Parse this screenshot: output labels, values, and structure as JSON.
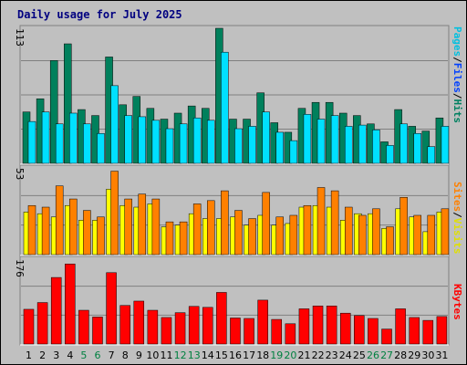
{
  "title": "Daily usage for July 2025",
  "colors": {
    "background": "#c0c0c0",
    "plot_bg": "#c0c0c0",
    "grid": "#808080",
    "title": "#000080",
    "hits": "#00805c",
    "files": "#0040ff",
    "pages": "#00e0ff",
    "visits": "#ffff00",
    "sites": "#ff8000",
    "kbytes": "#ff0000",
    "weekend": "#008040",
    "weekday": "#000000"
  },
  "side_labels": {
    "top": [
      {
        "text": "Pages",
        "color": "#00c0e0"
      },
      {
        "text": "/",
        "color": "#000000"
      },
      {
        "text": "Files",
        "color": "#0040ff"
      },
      {
        "text": "/",
        "color": "#000000"
      },
      {
        "text": "Hits",
        "color": "#008060"
      }
    ],
    "mid": [
      {
        "text": "Sites",
        "color": "#ff8000"
      },
      {
        "text": "/",
        "color": "#000000"
      },
      {
        "text": "Visits",
        "color": "#e0e000"
      }
    ],
    "bottom": [
      {
        "text": "KBytes",
        "color": "#ff0000"
      }
    ]
  },
  "chart_data": [
    {
      "type": "bar",
      "panel": "hits_files_pages",
      "ymax_label": "113",
      "ylim": [
        0,
        113
      ],
      "categories": [
        "1",
        "2",
        "3",
        "4",
        "5",
        "6",
        "7",
        "8",
        "9",
        "10",
        "11",
        "12",
        "13",
        "14",
        "15",
        "16",
        "17",
        "18",
        "19",
        "20",
        "21",
        "22",
        "23",
        "24",
        "25",
        "26",
        "27",
        "28",
        "29",
        "30",
        "31"
      ],
      "series": [
        {
          "name": "Hits",
          "values": [
            43,
            54,
            86,
            100,
            45,
            40,
            89,
            49,
            56,
            46,
            37,
            42,
            48,
            46,
            113,
            37,
            37,
            59,
            34,
            26,
            46,
            51,
            51,
            42,
            40,
            33,
            18,
            45,
            31,
            27,
            38
          ]
        },
        {
          "name": "Files",
          "values": [
            0,
            0,
            0,
            0,
            0,
            0,
            0,
            0,
            0,
            0,
            0,
            0,
            0,
            0,
            0,
            0,
            0,
            0,
            0,
            0,
            0,
            0,
            0,
            0,
            0,
            0,
            0,
            0,
            0,
            0,
            0
          ]
        },
        {
          "name": "Pages",
          "values": [
            35,
            43,
            33,
            42,
            33,
            25,
            65,
            40,
            39,
            36,
            29,
            33,
            38,
            36,
            93,
            29,
            31,
            43,
            26,
            19,
            41,
            37,
            40,
            31,
            32,
            28,
            15,
            33,
            25,
            14,
            31
          ]
        }
      ]
    },
    {
      "type": "bar",
      "panel": "visits_sites",
      "ymax_label": "53",
      "ylim": [
        0,
        53
      ],
      "categories": [
        "1",
        "2",
        "3",
        "4",
        "5",
        "6",
        "7",
        "8",
        "9",
        "10",
        "11",
        "12",
        "13",
        "14",
        "15",
        "16",
        "17",
        "18",
        "19",
        "20",
        "21",
        "22",
        "23",
        "24",
        "25",
        "26",
        "27",
        "28",
        "29",
        "30",
        "31"
      ],
      "series": [
        {
          "name": "Visits",
          "values": [
            26,
            25,
            23,
            30,
            21,
            21,
            40,
            30,
            29,
            31,
            17,
            18,
            25,
            22,
            22,
            23,
            18,
            24,
            18,
            19,
            29,
            30,
            29,
            21,
            25,
            25,
            16,
            28,
            23,
            14,
            26
          ]
        },
        {
          "name": "Sites",
          "values": [
            30,
            29,
            42,
            34,
            27,
            23,
            51,
            34,
            37,
            34,
            20,
            20,
            31,
            33,
            39,
            27,
            22,
            38,
            23,
            24,
            30,
            41,
            39,
            29,
            24,
            28,
            17,
            35,
            24,
            24,
            28
          ]
        }
      ]
    },
    {
      "type": "bar",
      "panel": "kbytes",
      "ymax_label": "176",
      "ylim": [
        0,
        176
      ],
      "categories": [
        "1",
        "2",
        "3",
        "4",
        "5",
        "6",
        "7",
        "8",
        "9",
        "10",
        "11",
        "12",
        "13",
        "14",
        "15",
        "16",
        "17",
        "18",
        "19",
        "20",
        "21",
        "22",
        "23",
        "24",
        "25",
        "26",
        "27",
        "28",
        "29",
        "30",
        "31"
      ],
      "series": [
        {
          "name": "KBytes",
          "values": [
            72,
            86,
            138,
            166,
            70,
            56,
            148,
            80,
            89,
            70,
            55,
            65,
            78,
            76,
            107,
            54,
            53,
            91,
            51,
            42,
            73,
            79,
            79,
            64,
            59,
            53,
            31,
            73,
            55,
            49,
            57
          ]
        }
      ]
    }
  ],
  "weekend_days": [
    5,
    6,
    12,
    13,
    19,
    20,
    26,
    27
  ]
}
